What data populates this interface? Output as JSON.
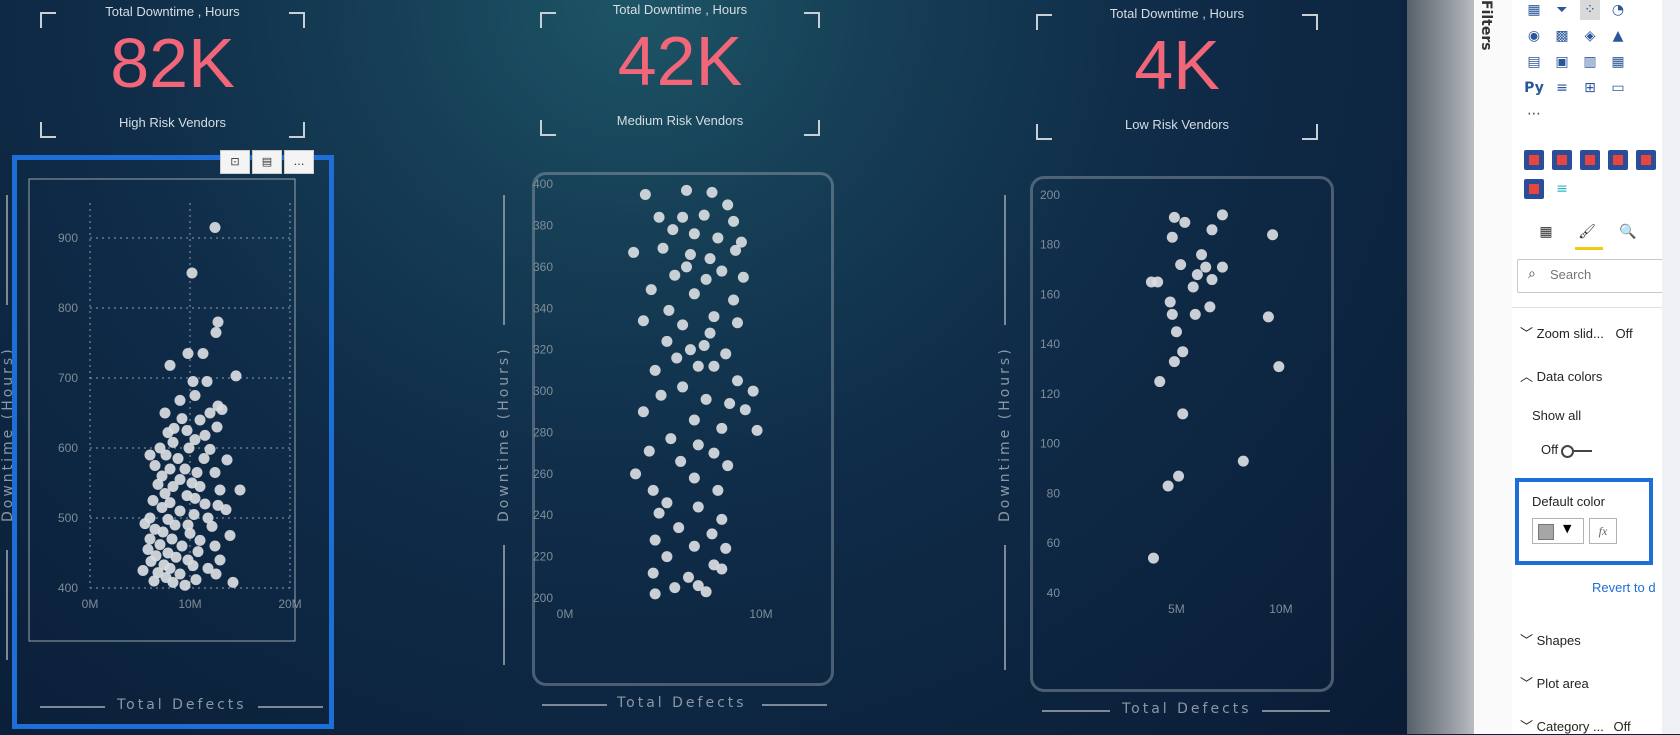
{
  "kpis": [
    {
      "caption": "Total Downtime , Hours",
      "value": "82K",
      "subtitle": "High Risk Vendors"
    },
    {
      "caption": "Total Downtime , Hours",
      "value": "42K",
      "subtitle": "Medium Risk Vendors"
    },
    {
      "caption": "Total Downtime , Hours",
      "value": "4K",
      "subtitle": "Low Risk Vendors"
    }
  ],
  "charts": [
    {
      "type": "scatter",
      "name": "high-risk",
      "xlabel": "Total Defects",
      "ylabel": "Downtime (Hours)",
      "xticks": [
        "0M",
        "10M",
        "20M"
      ],
      "yticks": [
        "400",
        "500",
        "600",
        "700",
        "800",
        "900"
      ],
      "xlim": [
        0,
        20
      ],
      "ylim": [
        400,
        950
      ],
      "chart_data": {
        "type": "scatter",
        "xlabel": "Total Defects",
        "ylabel": "Downtime (Hours)",
        "points": [
          [
            12.5,
            915
          ],
          [
            10.2,
            850
          ],
          [
            12.8,
            780
          ],
          [
            12.6,
            765
          ],
          [
            9.8,
            735
          ],
          [
            11.3,
            735
          ],
          [
            8.0,
            718
          ],
          [
            14.6,
            703
          ],
          [
            11.7,
            695
          ],
          [
            10.3,
            695
          ],
          [
            10.5,
            675
          ],
          [
            9.0,
            668
          ],
          [
            12.8,
            660
          ],
          [
            12.0,
            650
          ],
          [
            13.2,
            655
          ],
          [
            7.5,
            650
          ],
          [
            9.2,
            642
          ],
          [
            11.0,
            640
          ],
          [
            12.7,
            630
          ],
          [
            8.4,
            628
          ],
          [
            9.7,
            625
          ],
          [
            7.8,
            622
          ],
          [
            11.5,
            618
          ],
          [
            10.5,
            612
          ],
          [
            8.3,
            608
          ],
          [
            7.0,
            600
          ],
          [
            9.9,
            600
          ],
          [
            12.0,
            598
          ],
          [
            6.0,
            590
          ],
          [
            7.6,
            590
          ],
          [
            8.8,
            585
          ],
          [
            11.4,
            585
          ],
          [
            13.7,
            583
          ],
          [
            6.5,
            575
          ],
          [
            8.0,
            570
          ],
          [
            9.5,
            570
          ],
          [
            10.7,
            565
          ],
          [
            12.5,
            565
          ],
          [
            7.2,
            560
          ],
          [
            9.0,
            555
          ],
          [
            10.2,
            550
          ],
          [
            6.8,
            548
          ],
          [
            8.3,
            545
          ],
          [
            11.0,
            545
          ],
          [
            13.0,
            540
          ],
          [
            15.0,
            540
          ],
          [
            7.5,
            535
          ],
          [
            9.7,
            532
          ],
          [
            10.5,
            528
          ],
          [
            6.3,
            525
          ],
          [
            8.0,
            522
          ],
          [
            11.5,
            520
          ],
          [
            12.8,
            518
          ],
          [
            7.2,
            515
          ],
          [
            9.0,
            510
          ],
          [
            13.6,
            512
          ],
          [
            10.4,
            505
          ],
          [
            6.0,
            500
          ],
          [
            7.8,
            498
          ],
          [
            11.8,
            500
          ],
          [
            5.5,
            492
          ],
          [
            8.5,
            490
          ],
          [
            9.8,
            490
          ],
          [
            12.2,
            488
          ],
          [
            6.5,
            484
          ],
          [
            7.3,
            480
          ],
          [
            10.0,
            478
          ],
          [
            14.0,
            475
          ],
          [
            6.0,
            470
          ],
          [
            8.2,
            470
          ],
          [
            11.0,
            468
          ],
          [
            7.0,
            462
          ],
          [
            9.2,
            460
          ],
          [
            12.5,
            460
          ],
          [
            5.8,
            455
          ],
          [
            7.8,
            450
          ],
          [
            10.8,
            452
          ],
          [
            6.6,
            446
          ],
          [
            8.6,
            444
          ],
          [
            9.8,
            440
          ],
          [
            13.0,
            440
          ],
          [
            6.1,
            438
          ],
          [
            7.4,
            433
          ],
          [
            10.3,
            432
          ],
          [
            8.0,
            428
          ],
          [
            11.8,
            428
          ],
          [
            5.3,
            425
          ],
          [
            6.8,
            422
          ],
          [
            9.0,
            420
          ],
          [
            12.6,
            420
          ],
          [
            7.6,
            415
          ],
          [
            10.6,
            412
          ],
          [
            6.4,
            410
          ],
          [
            8.3,
            408
          ],
          [
            14.3,
            408
          ],
          [
            9.5,
            404
          ]
        ]
      }
    },
    {
      "type": "scatter",
      "name": "medium-risk",
      "xlabel": "Total Defects",
      "ylabel": "Downtime (Hours)",
      "xticks": [
        "0M",
        "10M"
      ],
      "yticks": [
        "200",
        "220",
        "240",
        "260",
        "280",
        "300",
        "320",
        "340",
        "360",
        "380",
        "400"
      ],
      "xlim": [
        0,
        12.5
      ],
      "ylim": [
        200,
        402
      ],
      "chart_data": {
        "type": "scatter",
        "xlabel": "Total Defects",
        "ylabel": "Downtime (Hours)",
        "points": [
          [
            4.1,
            395
          ],
          [
            6.2,
            397
          ],
          [
            7.5,
            396
          ],
          [
            8.3,
            390
          ],
          [
            4.8,
            384
          ],
          [
            6.0,
            384
          ],
          [
            7.1,
            385
          ],
          [
            8.6,
            382
          ],
          [
            5.5,
            378
          ],
          [
            6.6,
            376
          ],
          [
            7.8,
            374
          ],
          [
            9.0,
            372
          ],
          [
            3.5,
            367
          ],
          [
            5.0,
            369
          ],
          [
            6.4,
            366
          ],
          [
            7.4,
            364
          ],
          [
            8.7,
            368
          ],
          [
            6.2,
            360
          ],
          [
            8.0,
            358
          ],
          [
            5.6,
            356
          ],
          [
            7.2,
            354
          ],
          [
            9.1,
            355
          ],
          [
            4.4,
            349
          ],
          [
            6.6,
            347
          ],
          [
            8.6,
            344
          ],
          [
            5.3,
            339
          ],
          [
            7.6,
            336
          ],
          [
            4.0,
            334
          ],
          [
            6.0,
            332
          ],
          [
            7.4,
            328
          ],
          [
            8.8,
            333
          ],
          [
            5.2,
            324
          ],
          [
            6.4,
            320
          ],
          [
            7.1,
            322
          ],
          [
            8.2,
            318
          ],
          [
            5.7,
            316
          ],
          [
            6.8,
            312
          ],
          [
            7.6,
            312
          ],
          [
            4.6,
            310
          ],
          [
            8.8,
            305
          ],
          [
            6.0,
            302
          ],
          [
            9.6,
            300
          ],
          [
            4.9,
            298
          ],
          [
            7.2,
            296
          ],
          [
            8.4,
            294
          ],
          [
            4.0,
            290
          ],
          [
            9.2,
            291
          ],
          [
            6.6,
            286
          ],
          [
            8.0,
            282
          ],
          [
            9.8,
            281
          ],
          [
            5.4,
            277
          ],
          [
            6.8,
            274
          ],
          [
            4.3,
            271
          ],
          [
            7.6,
            270
          ],
          [
            5.9,
            266
          ],
          [
            8.3,
            264
          ],
          [
            3.6,
            260
          ],
          [
            6.6,
            258
          ],
          [
            4.5,
            252
          ],
          [
            7.8,
            252
          ],
          [
            5.2,
            246
          ],
          [
            6.8,
            244
          ],
          [
            4.8,
            241
          ],
          [
            8.0,
            238
          ],
          [
            5.8,
            234
          ],
          [
            7.5,
            231
          ],
          [
            4.6,
            228
          ],
          [
            6.6,
            225
          ],
          [
            8.2,
            224
          ],
          [
            5.2,
            220
          ],
          [
            7.6,
            216
          ],
          [
            4.5,
            212
          ],
          [
            6.3,
            210
          ],
          [
            8.0,
            214
          ],
          [
            5.6,
            205
          ],
          [
            6.8,
            206
          ],
          [
            4.6,
            202
          ],
          [
            7.2,
            203
          ]
        ]
      }
    },
    {
      "type": "scatter",
      "name": "low-risk",
      "xlabel": "Total Defects",
      "ylabel": "Downtime (Hours)",
      "xticks": [
        "5M",
        "10M"
      ],
      "yticks": [
        "40",
        "60",
        "80",
        "100",
        "120",
        "140",
        "160",
        "180",
        "200"
      ],
      "xlim": [
        0,
        11.2
      ],
      "ylim": [
        40,
        202
      ],
      "chart_data": {
        "type": "scatter",
        "xlabel": "Total Defects",
        "ylabel": "Downtime (Hours)",
        "points": [
          [
            4.9,
            191
          ],
          [
            7.2,
            192
          ],
          [
            9.6,
            184
          ],
          [
            5.4,
            189
          ],
          [
            4.8,
            183
          ],
          [
            6.7,
            186
          ],
          [
            6.2,
            176
          ],
          [
            5.2,
            172
          ],
          [
            6.0,
            168
          ],
          [
            6.4,
            171
          ],
          [
            7.2,
            171
          ],
          [
            3.8,
            165
          ],
          [
            4.1,
            165
          ],
          [
            6.7,
            166
          ],
          [
            5.8,
            163
          ],
          [
            4.7,
            157
          ],
          [
            6.6,
            155
          ],
          [
            5.9,
            152
          ],
          [
            9.4,
            151
          ],
          [
            4.8,
            152
          ],
          [
            5.0,
            145
          ],
          [
            5.3,
            137
          ],
          [
            4.9,
            133
          ],
          [
            9.9,
            131
          ],
          [
            4.2,
            125
          ],
          [
            5.3,
            112
          ],
          [
            8.2,
            93
          ],
          [
            5.1,
            87
          ],
          [
            4.6,
            83
          ],
          [
            3.9,
            54
          ]
        ]
      }
    }
  ],
  "toolbar": {
    "focus": "↑",
    "more": "…"
  },
  "filters_label": "Filters",
  "format_pane": {
    "search_placeholder": "Search",
    "zoom_label": "Zoom slid...",
    "zoom_value": "Off",
    "data_colors_label": "Data colors",
    "show_all_label": "Show all",
    "show_all_value": "Off",
    "default_color_label": "Default color",
    "default_color": "#a6a6a6",
    "fx_label": "fx",
    "revert_label": "Revert to d",
    "shapes_label": "Shapes",
    "plot_area_label": "Plot area",
    "category_label": "Category ...",
    "category_value": "Off"
  },
  "colors": {
    "kpi": "#f26679",
    "point": "#d9dde1",
    "selection": "#1e6ed8",
    "accent": "#f2c811"
  }
}
